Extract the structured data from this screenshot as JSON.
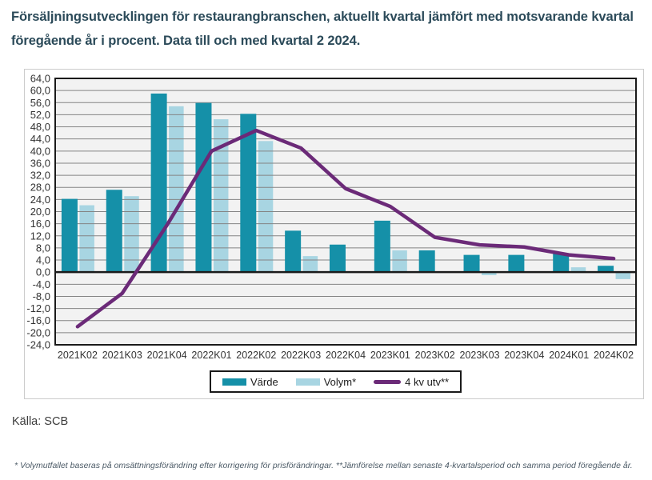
{
  "page": {
    "title": "Försäljningsutvecklingen för restaurangbranschen, aktuellt kvartal jämfört med motsvarande kvartal föregående år i procent. Data till och med kvartal 2 2024.",
    "source": "Källa: SCB",
    "footnote": "* Volymutfallet baseras på omsättningsförändring efter korrigering för prisförändringar. **Jämförelse mellan senaste 4-kvartalsperiod och samma period föregående år."
  },
  "colors": {
    "title_text": "#2b4a59",
    "axis_text": "#333333",
    "gridline": "#848484",
    "plot_background": "#f2f2f2",
    "border_and_zero_line": "#1a1a1a",
    "varde_bar": "#1590a8",
    "volym_bar": "#a8d5e2",
    "line_4kv": "#6b2a78"
  },
  "chart_data": {
    "type": "bar",
    "subtype": "grouped bars with overlay line",
    "categories": [
      "2021K02",
      "2021K03",
      "2021K04",
      "2022K01",
      "2022K02",
      "2022K03",
      "2022K04",
      "2023K01",
      "2023K02",
      "2023K03",
      "2023K04",
      "2024K01",
      "2024K02"
    ],
    "series": [
      {
        "name": "Värde",
        "type": "bar",
        "color": "#1590a8",
        "values": [
          24.2,
          27.2,
          59.0,
          55.9,
          52.3,
          13.7,
          9.1,
          17.0,
          7.2,
          5.7,
          5.7,
          6.1,
          2.1
        ]
      },
      {
        "name": "Volym*",
        "type": "bar",
        "color": "#a8d5e2",
        "values": [
          22.1,
          25.1,
          54.8,
          50.5,
          43.3,
          5.3,
          0.0,
          7.2,
          0.0,
          -1.0,
          0.0,
          1.6,
          -2.3
        ]
      },
      {
        "name": "4 kv utv**",
        "type": "line",
        "color": "#6b2a78",
        "values": [
          -18.0,
          -7.0,
          15.5,
          40.0,
          46.8,
          41.0,
          27.6,
          21.7,
          11.5,
          9.0,
          8.3,
          5.7,
          4.5
        ]
      }
    ],
    "title": "Försäljningsutvecklingen för restaurangbranschen, aktuellt kvartal jämfört med motsvarande kvartal föregående år i procent",
    "xlabel": "",
    "ylabel": "",
    "ylim": [
      -24.0,
      64.0
    ],
    "ytick_step": 4.0,
    "ytick_decimal_separator": ",",
    "grid": true,
    "legend_position": "bottom"
  }
}
